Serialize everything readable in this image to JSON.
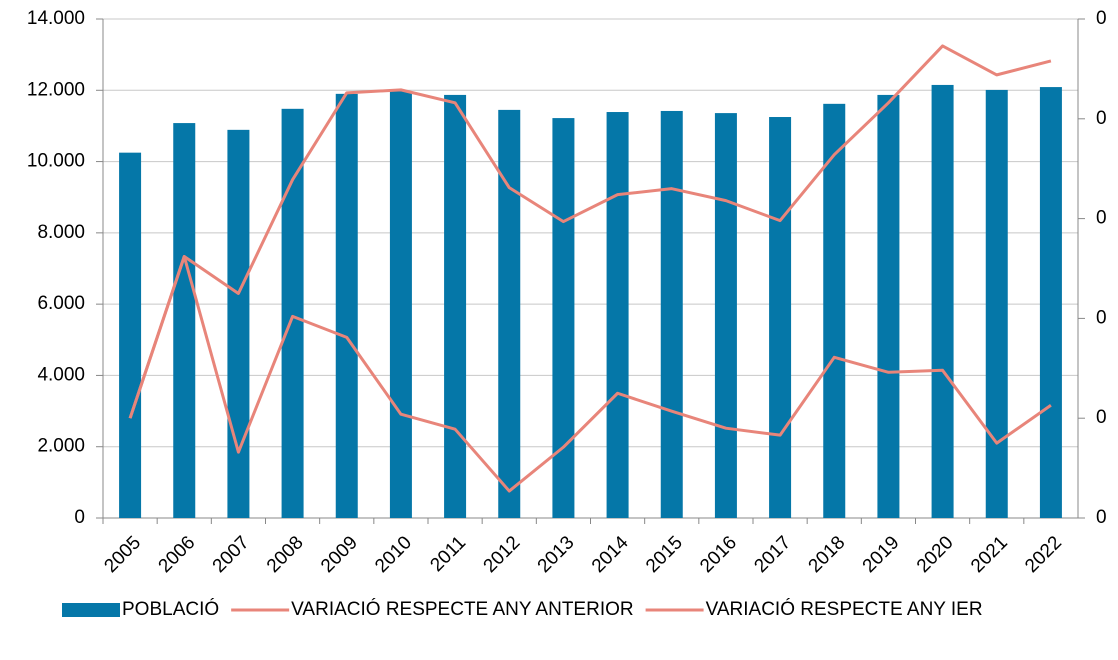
{
  "chart_data": {
    "type": "bar-line",
    "categories": [
      "2005",
      "2006",
      "2007",
      "2008",
      "2009",
      "2010",
      "2011",
      "2012",
      "2013",
      "2014",
      "2015",
      "2016",
      "2017",
      "2018",
      "2019",
      "2020",
      "2021",
      "2022"
    ],
    "series": [
      {
        "name": "POBLACIÓ",
        "type": "bar",
        "color": "#0577a8",
        "values": [
          10250,
          11080,
          10890,
          11480,
          11900,
          11980,
          11870,
          11450,
          11220,
          11390,
          11420,
          11360,
          11250,
          11620,
          11870,
          12150,
          12010,
          12090
        ]
      },
      {
        "name": "VARIACIÓ RESPECTE ANY ANTERIOR",
        "type": "line",
        "axis": "y2",
        "color": "#e8857a",
        "values": [
          1.0,
          2.62,
          0.66,
          2.02,
          1.81,
          1.04,
          0.89,
          0.27,
          0.71,
          1.25,
          1.07,
          0.9,
          0.83,
          1.61,
          1.46,
          1.48,
          0.75,
          1.13
        ]
      },
      {
        "name": "VARIACIÓ RESPECTE ANY IER",
        "type": "line",
        "axis": "y2",
        "color": "#e8857a",
        "values": [
          1.0,
          2.62,
          2.25,
          3.39,
          4.26,
          4.29,
          4.16,
          3.31,
          2.97,
          3.24,
          3.3,
          3.18,
          2.98,
          3.64,
          4.16,
          4.73,
          4.44,
          4.58
        ]
      }
    ],
    "ylim": [
      0,
      14000
    ],
    "yticks": [
      0,
      {
        "value": 2000,
        "label": "2.000"
      },
      {
        "value": 4000,
        "label": "4.000"
      },
      {
        "value": 6000,
        "label": "6.000"
      },
      {
        "value": 8000,
        "label": "8.000"
      },
      {
        "value": 10000,
        "label": "10.000"
      },
      {
        "value": 12000,
        "label": "12.000"
      },
      {
        "value": 14000,
        "label": "14.000"
      }
    ],
    "y2lim": [
      0,
      5
    ],
    "y2ticks": [
      0,
      {
        "value": 1,
        "label": "0"
      },
      {
        "value": 2,
        "label": "0"
      },
      {
        "value": 3,
        "label": "0"
      },
      {
        "value": 4,
        "label": "0"
      },
      {
        "value": 5,
        "label": "0"
      }
    ],
    "grid": true,
    "legend": "bottom"
  }
}
